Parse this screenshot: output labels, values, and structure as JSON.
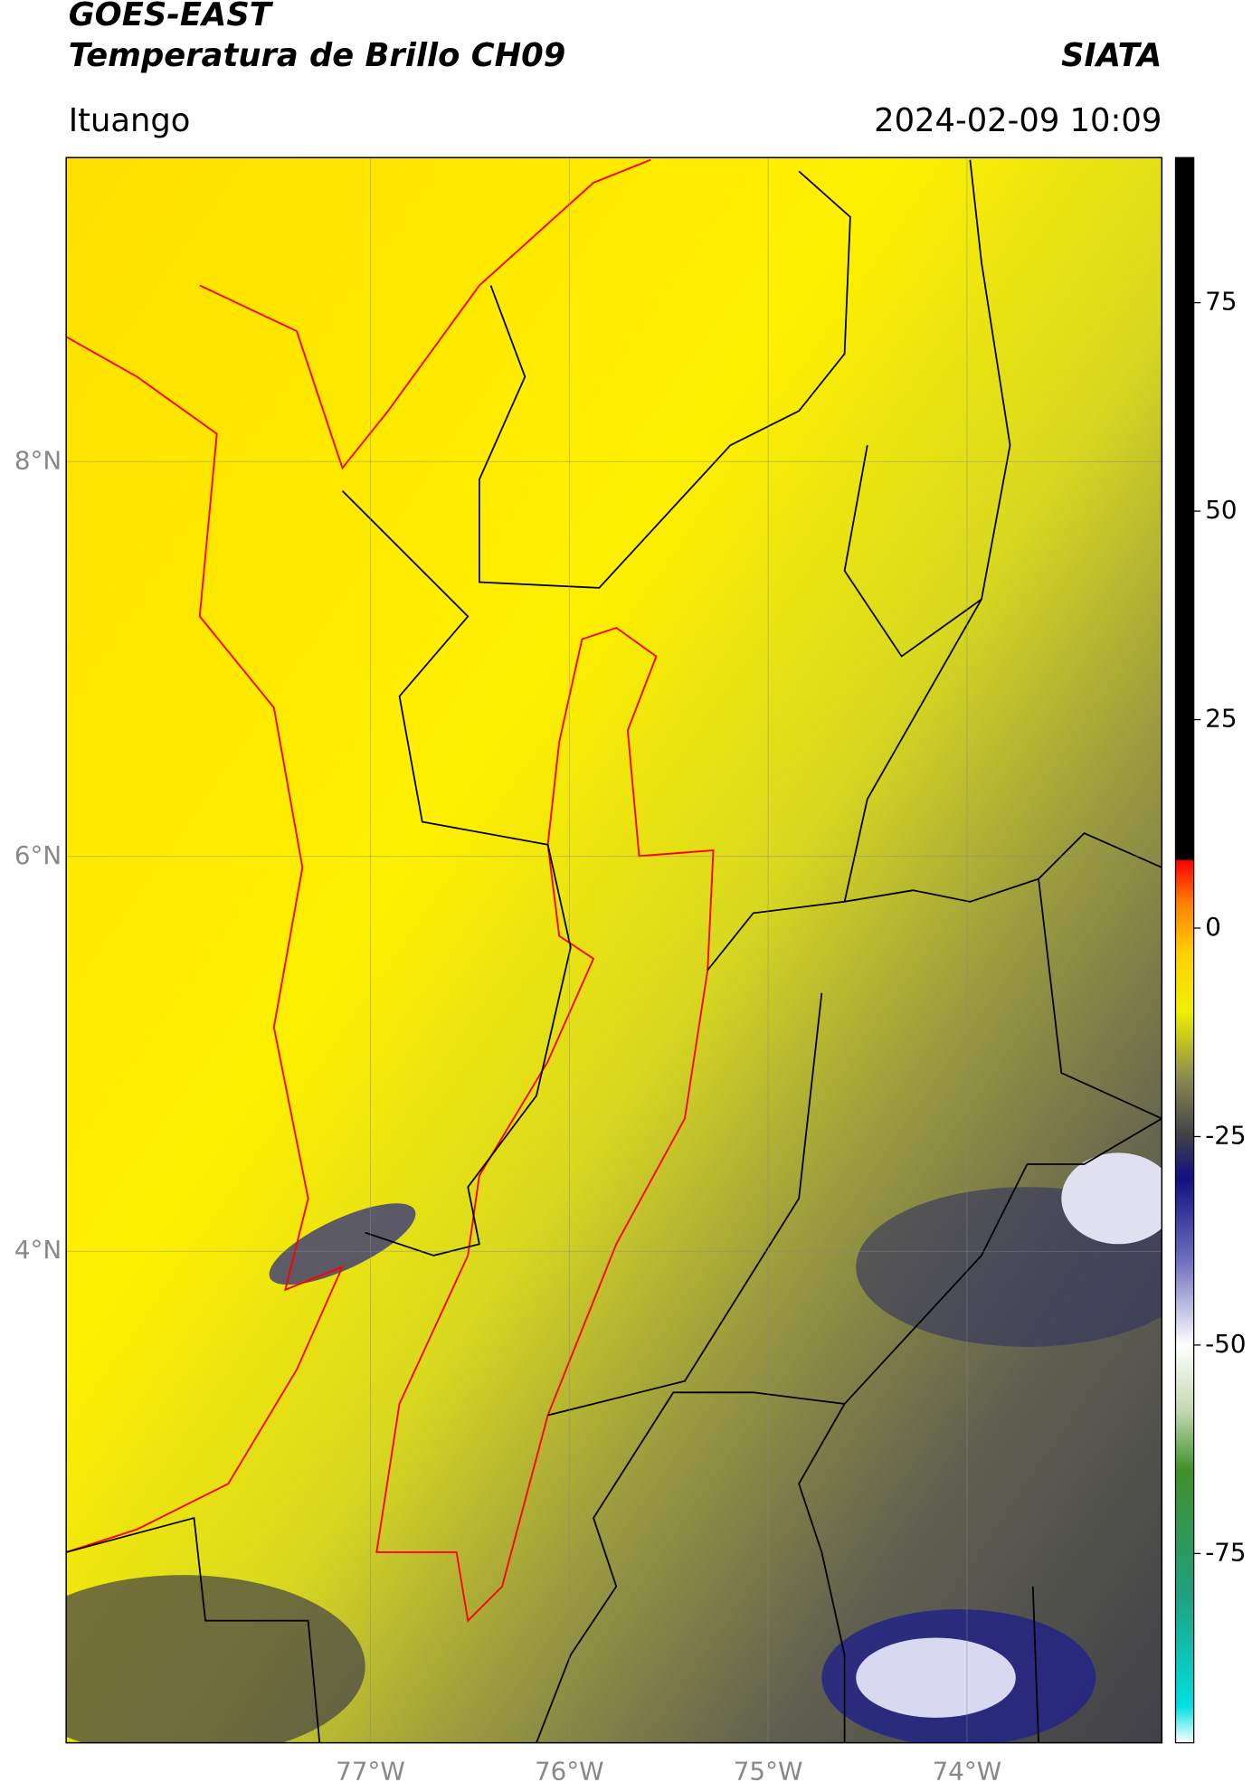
{
  "chart_data": {
    "type": "map",
    "title": "GOES-EAST",
    "subtitle": "Temperatura de Brillo CH09",
    "source": "SIATA",
    "location": "Ituango",
    "datetime": "2024-02-09 10:09",
    "xlim": [
      -78.53,
      -73.02
    ],
    "ylim": [
      1.51,
      9.54
    ],
    "xticks": [
      {
        "value": -77,
        "label": "77°W"
      },
      {
        "value": -76,
        "label": "76°W"
      },
      {
        "value": -75,
        "label": "75°W"
      },
      {
        "value": -74,
        "label": "74°W"
      }
    ],
    "yticks": [
      {
        "value": 4,
        "label": "4°N"
      },
      {
        "value": 6,
        "label": "6°N"
      },
      {
        "value": 8,
        "label": "8°N"
      }
    ],
    "grid": true,
    "colorbar": {
      "lim": [
        -97.7,
        92.4
      ],
      "ticks": [
        -75,
        -50,
        -25,
        0,
        25,
        50,
        75
      ],
      "stops": [
        {
          "value": -97.7,
          "color": "#ffffff"
        },
        {
          "value": -93.3,
          "color": "#00e0e0"
        },
        {
          "value": -80,
          "color": "#20a080"
        },
        {
          "value": -65,
          "color": "#40902a"
        },
        {
          "value": -58,
          "color": "#c0d8b0"
        },
        {
          "value": -50,
          "color": "#ffffff"
        },
        {
          "value": -40,
          "color": "#7070c0"
        },
        {
          "value": -30,
          "color": "#101080"
        },
        {
          "value": -25,
          "color": "#404048"
        },
        {
          "value": -18,
          "color": "#8a8a50"
        },
        {
          "value": -10,
          "color": "#f0f000"
        },
        {
          "value": -3,
          "color": "#ffd000"
        },
        {
          "value": 3,
          "color": "#ff8000"
        },
        {
          "value": 8.1,
          "color": "#ff0000"
        },
        {
          "value": 8.2,
          "color": "#000000"
        },
        {
          "value": 92.4,
          "color": "#000000"
        }
      ]
    }
  }
}
